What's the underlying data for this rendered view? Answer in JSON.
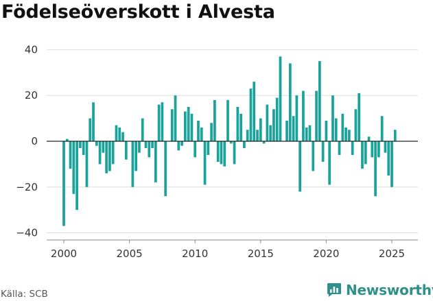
{
  "header": {
    "title": "Födelseöverskott i Alvesta"
  },
  "footer": {
    "source": "Källa: SCB",
    "brand": "Newsworthy",
    "brand_icon": "bar-chart-logo-icon"
  },
  "colors": {
    "bar": "#1aa39a",
    "grid": "#dddddd",
    "zero": "#222222",
    "text": "#333333",
    "brand": "#2f8f8a"
  },
  "chart_data": {
    "type": "bar",
    "title": "Födelseöverskott i Alvesta",
    "xlabel": "",
    "ylabel": "",
    "xlim": [
      1999.2,
      2026.8
    ],
    "ylim": [
      -43,
      43
    ],
    "yticks": [
      -40,
      -20,
      0,
      20,
      40
    ],
    "xticks": [
      2000,
      2005,
      2010,
      2015,
      2020,
      2025
    ],
    "grid": true,
    "legend": "none",
    "frequency": "quarterly",
    "x": [
      2000.0,
      2000.25,
      2000.5,
      2000.75,
      2001.0,
      2001.25,
      2001.5,
      2001.75,
      2002.0,
      2002.25,
      2002.5,
      2002.75,
      2003.0,
      2003.25,
      2003.5,
      2003.75,
      2004.0,
      2004.25,
      2004.5,
      2004.75,
      2005.0,
      2005.25,
      2005.5,
      2005.75,
      2006.0,
      2006.25,
      2006.5,
      2006.75,
      2007.0,
      2007.25,
      2007.5,
      2007.75,
      2008.0,
      2008.25,
      2008.5,
      2008.75,
      2009.0,
      2009.25,
      2009.5,
      2009.75,
      2010.0,
      2010.25,
      2010.5,
      2010.75,
      2011.0,
      2011.25,
      2011.5,
      2011.75,
      2012.0,
      2012.25,
      2012.5,
      2012.75,
      2013.0,
      2013.25,
      2013.5,
      2013.75,
      2014.0,
      2014.25,
      2014.5,
      2014.75,
      2015.0,
      2015.25,
      2015.5,
      2015.75,
      2016.0,
      2016.25,
      2016.5,
      2016.75,
      2017.0,
      2017.25,
      2017.5,
      2017.75,
      2018.0,
      2018.25,
      2018.5,
      2018.75,
      2019.0,
      2019.25,
      2019.5,
      2019.75,
      2020.0,
      2020.25,
      2020.5,
      2020.75,
      2021.0,
      2021.25,
      2021.5,
      2021.75,
      2022.0,
      2022.25,
      2022.5,
      2022.75,
      2023.0,
      2023.25,
      2023.5,
      2023.75,
      2024.0,
      2024.25,
      2024.5,
      2024.75,
      2025.0,
      2025.25
    ],
    "values": [
      -37,
      1,
      -12,
      -23,
      -30,
      -3,
      -6,
      -20,
      10,
      17,
      -2,
      -10,
      -5,
      -14,
      -13,
      -10,
      7,
      6,
      4,
      -8,
      0,
      -20,
      -13,
      -5,
      10,
      -3,
      -7,
      -3,
      -18,
      16,
      17,
      -24,
      0,
      14,
      20,
      -4,
      -2,
      13,
      15,
      12,
      -7,
      9,
      6,
      -19,
      -6,
      8,
      18,
      -9,
      -10,
      -11,
      18,
      -1,
      -10,
      15,
      12,
      -3,
      5,
      23,
      26,
      5,
      10,
      -1,
      16,
      7,
      14,
      19,
      37,
      0,
      9,
      34,
      11,
      20,
      -22,
      22,
      6,
      7,
      -13,
      22,
      35,
      -9,
      9,
      -19,
      20,
      10,
      -6,
      12,
      6,
      5,
      -6,
      14,
      21,
      -12,
      -10,
      2,
      -7,
      -24,
      -7,
      11,
      -5,
      -15,
      -20,
      5
    ]
  }
}
